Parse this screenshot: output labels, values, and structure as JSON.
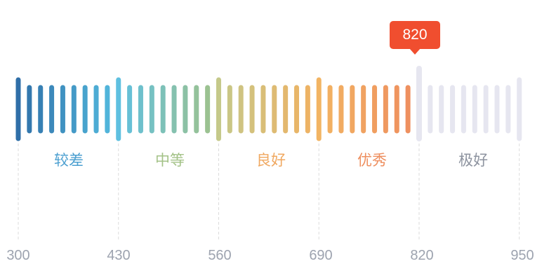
{
  "score": {
    "value": 820,
    "label": "820",
    "badge_color": "#f04e2f"
  },
  "scale": {
    "min": 300,
    "max": 950,
    "inactive_color": "#e6e6f0",
    "ticks": [
      "300",
      "430",
      "560",
      "690",
      "820",
      "950"
    ]
  },
  "bands": [
    {
      "label": "较差",
      "from": 300,
      "to": 430,
      "text_color": "#4b9fd0",
      "color_start": "#2f6fa8",
      "color_end": "#55bde0"
    },
    {
      "label": "中等",
      "from": 430,
      "to": 560,
      "text_color": "#a3c287",
      "color_start": "#5fc0e0",
      "color_end": "#a3c287"
    },
    {
      "label": "良好",
      "from": 560,
      "to": 690,
      "text_color": "#f0a860",
      "color_start": "#c5c98a",
      "color_end": "#f2b060"
    },
    {
      "label": "优秀",
      "from": 690,
      "to": 820,
      "text_color": "#ee8e5e",
      "color_start": "#f2b463",
      "color_end": "#ee8c5e"
    },
    {
      "label": "极好",
      "from": 820,
      "to": 950,
      "text_color": "#8d939f",
      "color_start": "#e6e6f0",
      "color_end": "#e6e6f0"
    }
  ]
}
